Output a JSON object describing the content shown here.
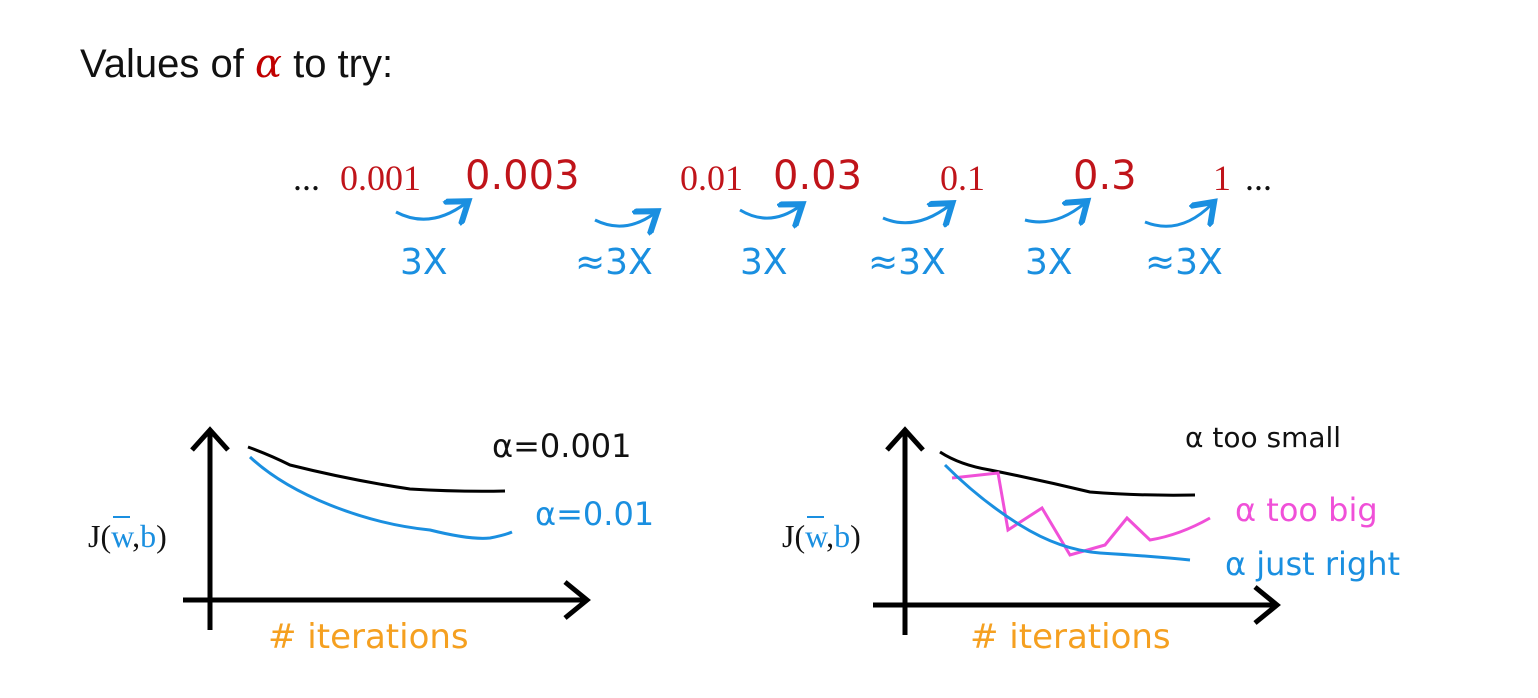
{
  "title": {
    "before": "Values of",
    "alpha": "α",
    "after": "to try:"
  },
  "sequence": [
    "...",
    "0.001",
    "0.003",
    "0.01",
    "0.03",
    "0.1",
    "0.3",
    "1",
    "..."
  ],
  "factors": [
    "3X",
    "≈3X",
    "3X",
    "≈3X",
    "3X",
    "≈3X"
  ],
  "left_plot": {
    "y_label": [
      "J(",
      "w",
      ",",
      "b",
      ")"
    ],
    "x_label": "# iterations",
    "curve_labels": [
      "α=0.001",
      "α=0.01"
    ]
  },
  "right_plot": {
    "y_label": [
      "J(",
      "w",
      ",",
      "b",
      ")"
    ],
    "x_label": "# iterations",
    "curve_labels": [
      "α too small",
      "α too big",
      "α just right"
    ]
  }
}
